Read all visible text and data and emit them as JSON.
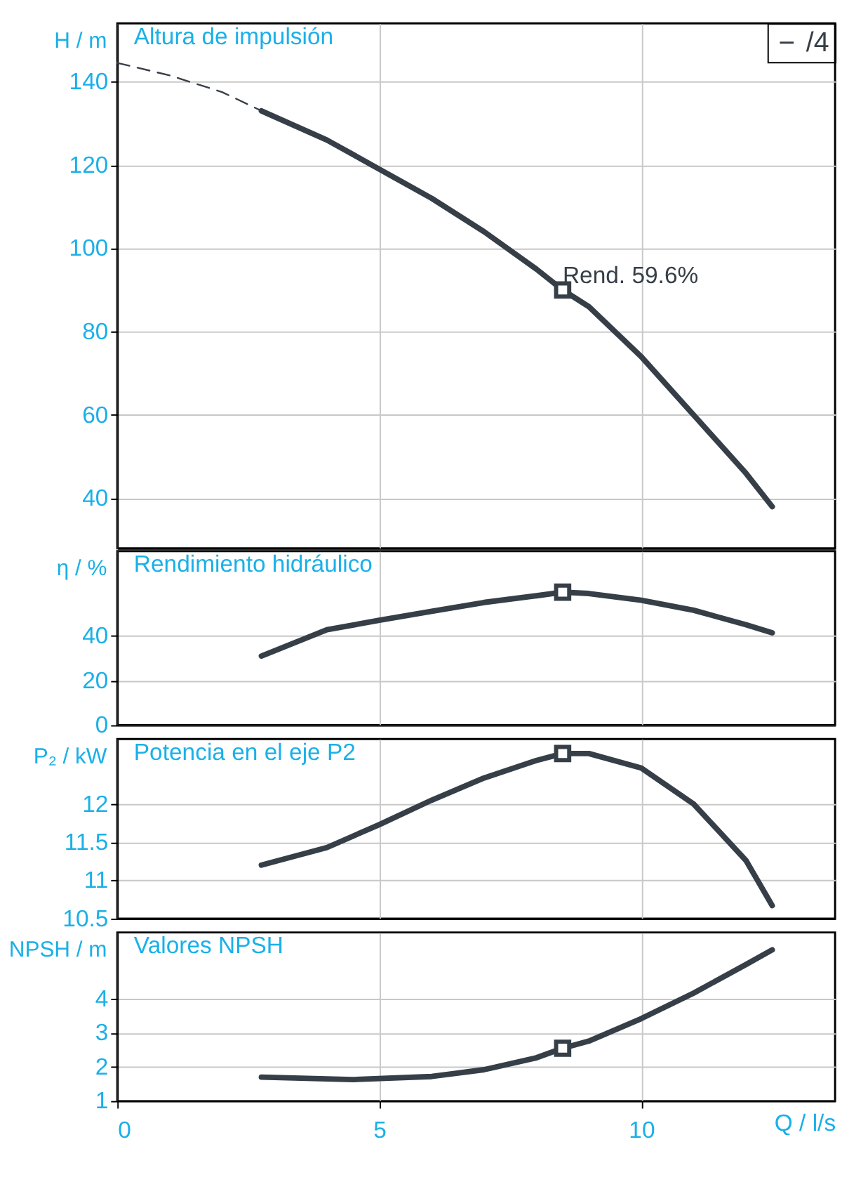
{
  "chart_data": [
    {
      "type": "line",
      "title": "Altura de impulsión",
      "ylabel": "H / m",
      "xlim": [
        0,
        13.7
      ],
      "xticks": [
        0,
        5,
        10
      ],
      "ylim": [
        28,
        154
      ],
      "yticks": [
        40,
        60,
        80,
        100,
        120,
        140
      ],
      "grid": true,
      "legend": "top right",
      "tick_labels": "y",
      "annotations": [
        {
          "text": "Rend. 59.6%",
          "x": 8.5,
          "y": 90
        }
      ],
      "series": [
        {
          "name": "/4",
          "color": "#363f48",
          "x": [
            2.75,
            4,
            5,
            6,
            7,
            8,
            8.5,
            9,
            10,
            11,
            12,
            12.5
          ],
          "values": [
            133,
            126,
            119,
            112,
            104,
            95,
            90,
            86,
            74,
            60,
            46,
            38
          ]
        },
        {
          "type": "line",
          "line_style": "dashed",
          "color": "#363f48",
          "x": [
            0,
            1,
            2,
            2.75
          ],
          "values": [
            144.5,
            141.5,
            137.5,
            133
          ]
        },
        {
          "type": "scatter",
          "marker": "square",
          "color": "#363f48",
          "x": [
            8.5
          ],
          "values": [
            90
          ]
        }
      ]
    },
    {
      "type": "line",
      "title": "Rendimiento hidráulico",
      "ylabel": "η / %",
      "xlim": [
        0,
        13.7
      ],
      "xticks": [
        0,
        5,
        10
      ],
      "ylim": [
        0,
        78
      ],
      "yticks": [
        0,
        20,
        40
      ],
      "grid": true,
      "tick_labels": "y",
      "series": [
        {
          "color": "#363f48",
          "x": [
            2.75,
            4,
            5,
            6,
            7,
            8,
            8.5,
            9,
            10,
            11,
            12,
            12.5
          ],
          "values": [
            31,
            42.8,
            47,
            51,
            55,
            58,
            59.6,
            59,
            56,
            51.5,
            45,
            41.4
          ]
        },
        {
          "type": "scatter",
          "marker": "square",
          "color": "#363f48",
          "x": [
            8.5
          ],
          "values": [
            59.6
          ]
        }
      ]
    },
    {
      "type": "line",
      "title": "Potencia en el eje P2",
      "ylabel": "P₂ / kW",
      "xlim": [
        0,
        13.7
      ],
      "xticks": [
        0,
        5,
        10
      ],
      "ylim": [
        10.5,
        12.85
      ],
      "yticks": [
        10.5,
        11,
        11.5,
        12
      ],
      "grid": true,
      "tick_labels": "y",
      "series": [
        {
          "color": "#363f48",
          "x": [
            2.75,
            4,
            5,
            6,
            7,
            8,
            8.5,
            9,
            10,
            11,
            12,
            12.5
          ],
          "values": [
            11.2,
            11.43,
            11.73,
            12.05,
            12.34,
            12.57,
            12.66,
            12.66,
            12.47,
            12,
            11.26,
            10.67
          ]
        },
        {
          "type": "scatter",
          "marker": "square",
          "color": "#363f48",
          "x": [
            8.5
          ],
          "values": [
            12.66
          ]
        }
      ]
    },
    {
      "type": "line",
      "title": "Valores NPSH",
      "ylabel": "NPSH / m",
      "xlabel": "Q / l/s",
      "xlim": [
        0,
        13.7
      ],
      "xticks": [
        0,
        5,
        10
      ],
      "ylim": [
        1,
        5.95
      ],
      "yticks": [
        1,
        2,
        3,
        4
      ],
      "grid": true,
      "series": [
        {
          "color": "#363f48",
          "x": [
            2.75,
            4.5,
            6,
            7,
            8,
            8.5,
            9,
            10,
            11,
            12,
            12.5
          ],
          "values": [
            1.7,
            1.63,
            1.72,
            1.92,
            2.27,
            2.55,
            2.76,
            3.42,
            4.17,
            5.01,
            5.44
          ]
        },
        {
          "type": "scatter",
          "marker": "square",
          "color": "#363f48",
          "x": [
            8.5
          ],
          "values": [
            2.55
          ]
        }
      ]
    }
  ]
}
